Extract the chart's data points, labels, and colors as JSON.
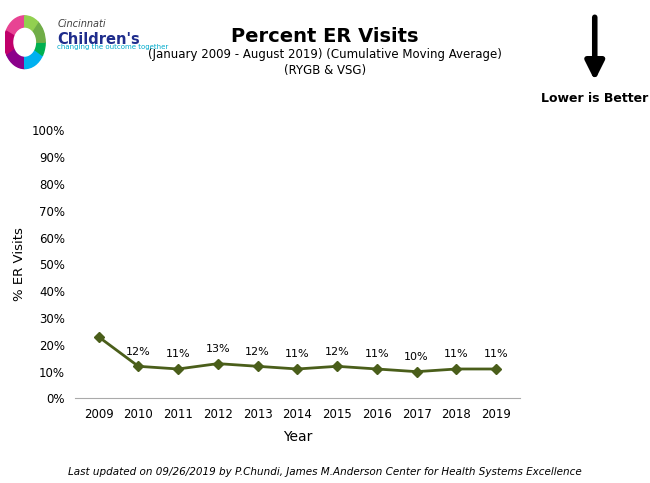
{
  "title": "Percent ER Visits",
  "subtitle1": "(January 2009 - August 2019) (Cumulative Moving Average)",
  "subtitle2": "(RYGB & VSG)",
  "xlabel": "Year",
  "ylabel": "% ER Visits",
  "years": [
    2009,
    2010,
    2011,
    2012,
    2013,
    2014,
    2015,
    2016,
    2017,
    2018,
    2019
  ],
  "values": [
    23,
    12,
    11,
    13,
    12,
    11,
    12,
    11,
    10,
    11,
    11
  ],
  "labels": [
    "",
    "12%",
    "11%",
    "13%",
    "12%",
    "11%",
    "12%",
    "11%",
    "10%",
    "11%",
    "11%"
  ],
  "line_color": "#4a5e1a",
  "ylim": [
    0,
    100
  ],
  "yticks": [
    0,
    10,
    20,
    30,
    40,
    50,
    60,
    70,
    80,
    90,
    100
  ],
  "ytick_labels": [
    "0%",
    "10%",
    "20%",
    "30%",
    "40%",
    "50%",
    "60%",
    "70%",
    "80%",
    "90%",
    "100%"
  ],
  "footer": "Last updated on 09/26/2019 by P.Chundi, James M.Anderson Center for Health Systems Excellence",
  "lower_is_better_text": "Lower is Better",
  "background_color": "#ffffff"
}
